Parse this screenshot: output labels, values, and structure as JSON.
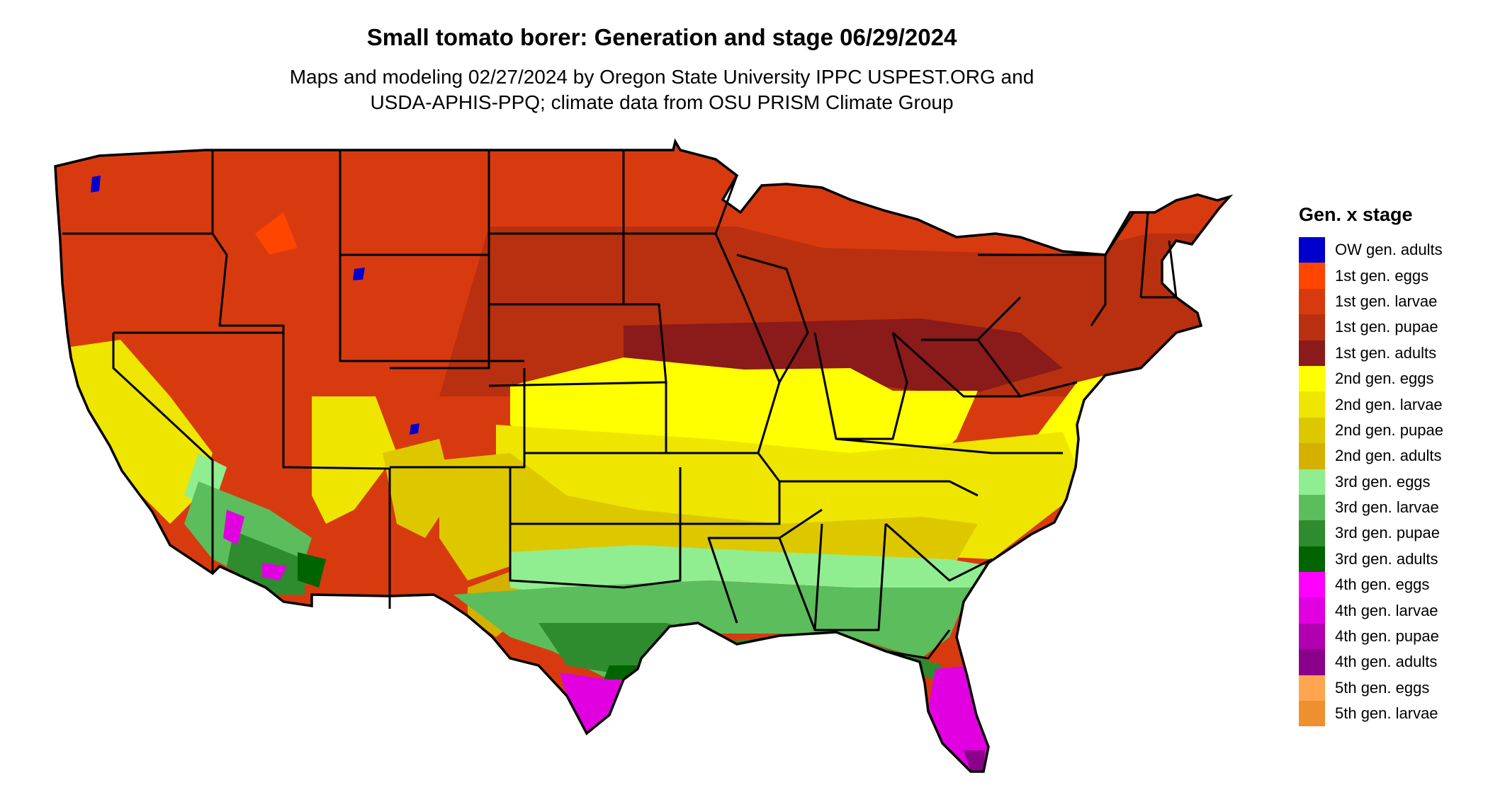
{
  "title": "Small tomato borer: Generation and stage 06/29/2024",
  "subtitle_line1": "Maps and modeling 02/27/2024 by Oregon State University IPPC USPEST.ORG and",
  "subtitle_line2": "USDA-APHIS-PPQ; climate data from OSU PRISM Climate Group",
  "legend": {
    "title": "Gen. x stage",
    "items": [
      {
        "label": "OW gen. adults",
        "color": "#0000cc"
      },
      {
        "label": "1st gen. eggs",
        "color": "#ff4500"
      },
      {
        "label": "1st gen. larvae",
        "color": "#d83a10"
      },
      {
        "label": "1st gen. pupae",
        "color": "#b8300f"
      },
      {
        "label": "1st gen. adults",
        "color": "#8b1a1a"
      },
      {
        "label": "2nd gen. eggs",
        "color": "#ffff00"
      },
      {
        "label": "2nd gen. larvae",
        "color": "#eee600"
      },
      {
        "label": "2nd gen. pupae",
        "color": "#ddc800"
      },
      {
        "label": "2nd gen. adults",
        "color": "#d4b000"
      },
      {
        "label": "3rd gen. eggs",
        "color": "#90ee90"
      },
      {
        "label": "3rd gen. larvae",
        "color": "#5cbd5c"
      },
      {
        "label": "3rd gen. pupae",
        "color": "#2e8b2e"
      },
      {
        "label": "3rd gen. adults",
        "color": "#006400"
      },
      {
        "label": "4th gen. eggs",
        "color": "#ff00ff"
      },
      {
        "label": "4th gen. larvae",
        "color": "#e000e0"
      },
      {
        "label": "4th gen. pupae",
        "color": "#b000b0"
      },
      {
        "label": "4th gen. adults",
        "color": "#8b008b"
      },
      {
        "label": "5th gen. eggs",
        "color": "#ffa54f"
      },
      {
        "label": "5th gen. larvae",
        "color": "#ee9030"
      }
    ]
  }
}
